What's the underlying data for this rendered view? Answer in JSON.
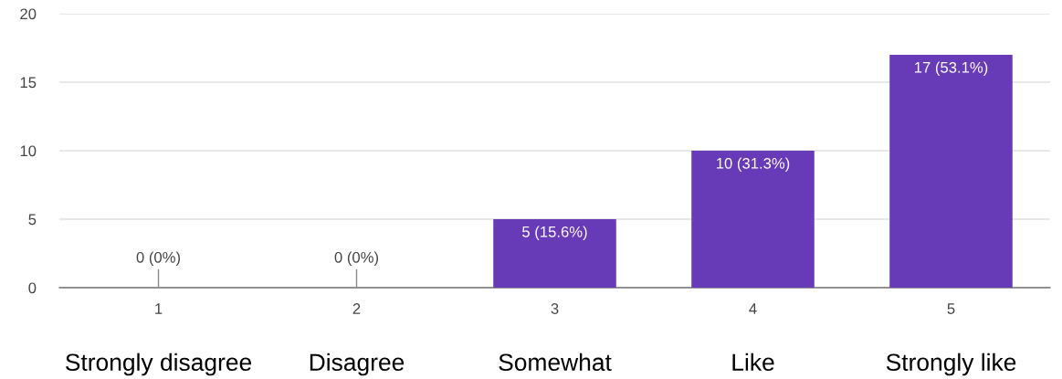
{
  "chart_data": {
    "type": "bar",
    "categories": [
      "1",
      "2",
      "3",
      "4",
      "5"
    ],
    "values": [
      0,
      0,
      5,
      10,
      17
    ],
    "value_labels": [
      "0 (0%)",
      "0 (0%)",
      "5 (15.6%)",
      "10 (31.3%)",
      "17 (53.1%)"
    ],
    "color": "#673ab7",
    "ylim": [
      0,
      20
    ],
    "yticks": [
      0,
      5,
      10,
      15,
      20
    ],
    "grid": "y",
    "annotations": [
      "Strongly disagree",
      "Disagree",
      "Somewhat",
      "Like",
      "Strongly like"
    ]
  }
}
